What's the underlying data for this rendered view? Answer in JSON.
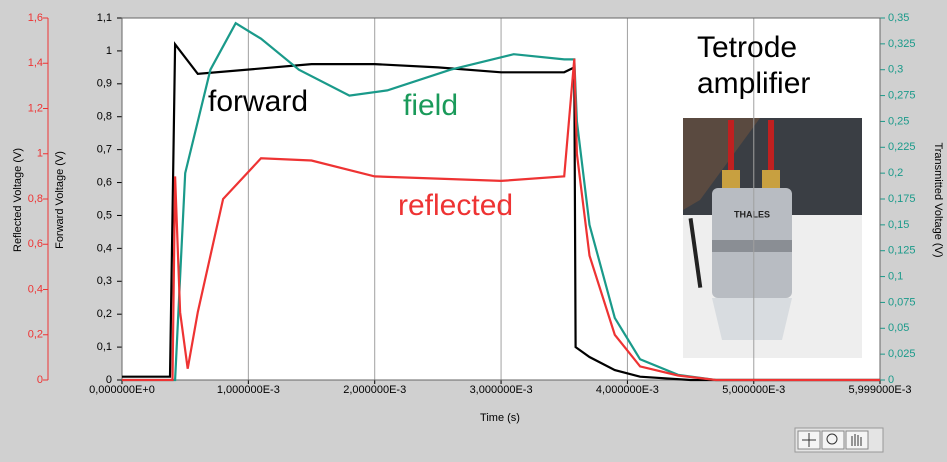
{
  "chart_data": {
    "type": "line",
    "xlabel": "Time (s)",
    "ylabel": "Forward Voltage (V)",
    "y3label": "Reflected Voltage  (V)",
    "y2label": "Transmitted Voltage (V)",
    "xlim": [
      0,
      0.005999
    ],
    "xticks": [
      {
        "value": 0,
        "label": "0,000000E+0"
      },
      {
        "value": 0.001,
        "label": "1,000000E-3"
      },
      {
        "value": 0.002,
        "label": "2,000000E-3"
      },
      {
        "value": 0.003,
        "label": "3,000000E-3"
      },
      {
        "value": 0.004,
        "label": "4,000000E-3"
      },
      {
        "value": 0.005,
        "label": "5,000000E-3"
      },
      {
        "value": 0.005999,
        "label": "5,999000E-3"
      }
    ],
    "ylim": [
      0,
      1.1
    ],
    "yticks": [
      0,
      {
        "value": 0.1,
        "label": "0,1"
      },
      {
        "value": 0.2,
        "label": "0,2"
      },
      {
        "value": 0.3,
        "label": "0,3"
      },
      {
        "value": 0.4,
        "label": "0,4"
      },
      {
        "value": 0.5,
        "label": "0,5"
      },
      {
        "value": 0.6,
        "label": "0,6"
      },
      {
        "value": 0.7,
        "label": "0,7"
      },
      {
        "value": 0.8,
        "label": "0,8"
      },
      {
        "value": 0.9,
        "label": "0,9"
      },
      1,
      {
        "value": 1.1,
        "label": "1,1"
      }
    ],
    "y3lim": [
      0,
      1.6
    ],
    "y3ticks": [
      0,
      {
        "value": 0.2,
        "label": "0,2"
      },
      {
        "value": 0.4,
        "label": "0,4"
      },
      {
        "value": 0.6,
        "label": "0,6"
      },
      {
        "value": 0.8,
        "label": "0,8"
      },
      1,
      {
        "value": 1.2,
        "label": "1,2"
      },
      {
        "value": 1.4,
        "label": "1,4"
      },
      {
        "value": 1.6,
        "label": "1,6"
      }
    ],
    "y3color": "#ee3333",
    "y2lim": [
      0,
      0.35
    ],
    "y2ticks": [
      0,
      {
        "value": 0.025,
        "label": "0,025"
      },
      {
        "value": 0.05,
        "label": "0,05"
      },
      {
        "value": 0.075,
        "label": "0,075"
      },
      {
        "value": 0.1,
        "label": "0,1"
      },
      {
        "value": 0.125,
        "label": "0,125"
      },
      {
        "value": 0.15,
        "label": "0,15"
      },
      {
        "value": 0.175,
        "label": "0,175"
      },
      {
        "value": 0.2,
        "label": "0,2"
      },
      {
        "value": 0.225,
        "label": "0,225"
      },
      {
        "value": 0.25,
        "label": "0,25"
      },
      {
        "value": 0.275,
        "label": "0,275"
      },
      {
        "value": 0.3,
        "label": "0,3"
      },
      {
        "value": 0.325,
        "label": "0,325"
      },
      {
        "value": 0.35,
        "label": "0,35"
      }
    ],
    "y2color": "#1a9a8a",
    "grid": true,
    "series": [
      {
        "name": "forward",
        "color": "#000000",
        "axis": "y",
        "x": [
          0,
          0.00038,
          0.0004,
          0.00042,
          0.0006,
          0.0015,
          0.002,
          0.0025,
          0.003,
          0.0035,
          0.00358,
          0.00359,
          0.0037,
          0.0039,
          0.0041,
          0.0045,
          0.005999
        ],
        "values": [
          0.01,
          0.01,
          0.5,
          1.02,
          0.93,
          0.96,
          0.96,
          0.95,
          0.935,
          0.935,
          0.95,
          0.1,
          0.07,
          0.03,
          0.01,
          0,
          0
        ]
      },
      {
        "name": "field",
        "color": "#1a9a8a",
        "axis": "y2",
        "x": [
          0,
          0.00042,
          0.00044,
          0.0005,
          0.0007,
          0.0009,
          0.0011,
          0.0014,
          0.0018,
          0.0021,
          0.0026,
          0.0031,
          0.0035,
          0.00358,
          0.0036,
          0.0037,
          0.0039,
          0.0041,
          0.0044,
          0.0047,
          0.005999
        ],
        "values": [
          0,
          0,
          0.05,
          0.2,
          0.3,
          0.345,
          0.33,
          0.3,
          0.275,
          0.28,
          0.3,
          0.315,
          0.31,
          0.31,
          0.25,
          0.15,
          0.06,
          0.02,
          0.005,
          0,
          0
        ]
      },
      {
        "name": "reflected",
        "color": "#ee3333",
        "axis": "y3",
        "x": [
          0,
          0.0004,
          0.00042,
          0.00046,
          0.00052,
          0.0006,
          0.0008,
          0.0011,
          0.0015,
          0.002,
          0.003,
          0.0035,
          0.00358,
          0.0036,
          0.0037,
          0.0039,
          0.0041,
          0.0044,
          0.0047,
          0.005999
        ],
        "values": [
          0,
          0,
          0.9,
          0.3,
          0.05,
          0.3,
          0.8,
          0.98,
          0.97,
          0.9,
          0.88,
          0.9,
          1.42,
          1.0,
          0.55,
          0.2,
          0.06,
          0.02,
          0,
          0
        ]
      }
    ],
    "annotations": [
      {
        "text": "forward",
        "color": "#000000"
      },
      {
        "text": "field",
        "color": "#1a9a5a"
      },
      {
        "text": "reflected",
        "color": "#ee3333"
      },
      {
        "text": "Tetrode amplifier",
        "color": "#000000"
      }
    ],
    "photo_label": "THALES"
  }
}
